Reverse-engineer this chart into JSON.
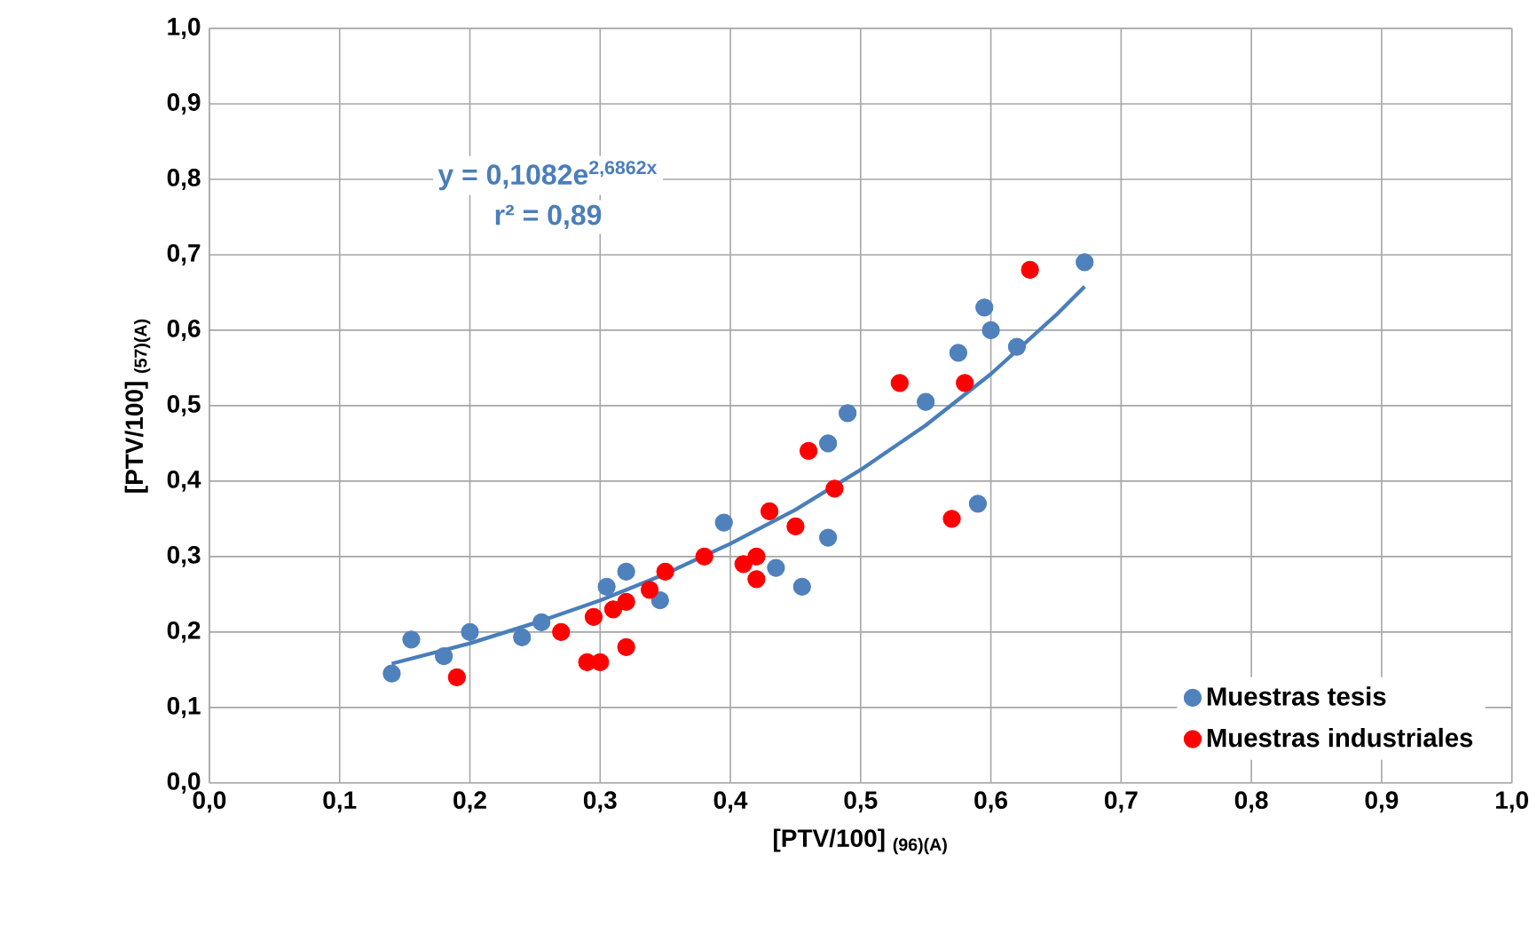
{
  "chart_data": {
    "type": "scatter",
    "xlabel": "[PTV/100] $_{(96)(A)}$",
    "ylabel": "[PTV/100] $_{(57)(A)}$",
    "annotations": [
      "y = 0,1082e$^{2,6862x}$",
      "r² = 0,89"
    ],
    "xlim": [
      0,
      1
    ],
    "ylim": [
      0,
      1
    ],
    "xticks": [
      {
        "value": 0,
        "label": "0,0"
      },
      {
        "value": 0.1,
        "label": "0,1"
      },
      {
        "value": 0.2,
        "label": "0,2"
      },
      {
        "value": 0.3,
        "label": "0,3"
      },
      {
        "value": 0.4,
        "label": "0,4"
      },
      {
        "value": 0.5,
        "label": "0,5"
      },
      {
        "value": 0.6,
        "label": "0,6"
      },
      {
        "value": 0.7,
        "label": "0,7"
      },
      {
        "value": 0.8,
        "label": "0,8"
      },
      {
        "value": 0.9,
        "label": "0,9"
      },
      {
        "value": 1,
        "label": "1,0"
      }
    ],
    "yticks": [
      {
        "value": 0,
        "label": "0,0"
      },
      {
        "value": 0.1,
        "label": "0,1"
      },
      {
        "value": 0.2,
        "label": "0,2"
      },
      {
        "value": 0.3,
        "label": "0,3"
      },
      {
        "value": 0.4,
        "label": "0,4"
      },
      {
        "value": 0.5,
        "label": "0,5"
      },
      {
        "value": 0.6,
        "label": "0,6"
      },
      {
        "value": 0.7,
        "label": "0,7"
      },
      {
        "value": 0.8,
        "label": "0,8"
      },
      {
        "value": 0.9,
        "label": "0,9"
      },
      {
        "value": 1,
        "label": "1,0"
      }
    ],
    "grid": true,
    "legend": "bottom right",
    "marker": "circle",
    "series": [
      {
        "name": "Muestras tesis",
        "color": "#4f81bd",
        "x": [
          0.14,
          0.155,
          0.18,
          0.2,
          0.24,
          0.255,
          0.305,
          0.32,
          0.346,
          0.395,
          0.435,
          0.455,
          0.475,
          0.475,
          0.49,
          0.55,
          0.575,
          0.59,
          0.595,
          0.6,
          0.62,
          0.672
        ],
        "values": [
          0.145,
          0.19,
          0.168,
          0.2,
          0.193,
          0.213,
          0.26,
          0.28,
          0.242,
          0.345,
          0.285,
          0.26,
          0.325,
          0.45,
          0.49,
          0.505,
          0.57,
          0.37,
          0.63,
          0.6,
          0.578,
          0.69
        ]
      },
      {
        "name": "Muestras industriales",
        "color": "#ff0000",
        "x": [
          0.19,
          0.27,
          0.29,
          0.295,
          0.3,
          0.31,
          0.32,
          0.32,
          0.338,
          0.35,
          0.38,
          0.41,
          0.42,
          0.42,
          0.43,
          0.45,
          0.46,
          0.48,
          0.53,
          0.57,
          0.58,
          0.63
        ],
        "values": [
          0.14,
          0.2,
          0.16,
          0.22,
          0.16,
          0.23,
          0.18,
          0.24,
          0.256,
          0.28,
          0.3,
          0.29,
          0.3,
          0.27,
          0.36,
          0.34,
          0.44,
          0.39,
          0.53,
          0.35,
          0.53,
          0.68
        ]
      },
      {
        "type": "line",
        "marker": "none",
        "color": "#4a7ebb",
        "x": [
          0.14,
          0.2,
          0.25,
          0.3,
          0.35,
          0.4,
          0.45,
          0.5,
          0.55,
          0.6,
          0.65,
          0.672
        ],
        "values": [
          0.158,
          0.185,
          0.212,
          0.242,
          0.277,
          0.317,
          0.362,
          0.415,
          0.474,
          0.542,
          0.62,
          0.658
        ]
      }
    ]
  }
}
